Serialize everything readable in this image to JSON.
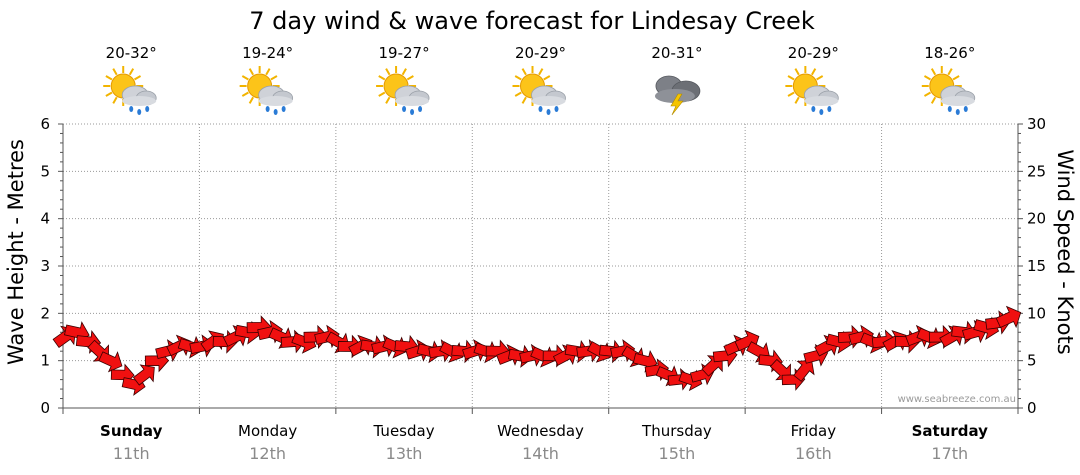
{
  "chart_data": {
    "type": "line",
    "title": "7 day wind & wave forecast for Lindesay Creek",
    "ylabel_left": "Wave Height - Metres",
    "ylabel_right": "Wind Speed - Knots",
    "ylim_left": [
      0,
      6
    ],
    "ylim_right": [
      0,
      30
    ],
    "yticks_left": [
      "0",
      "1",
      "2",
      "3",
      "4",
      "5",
      "6"
    ],
    "yticks_right": [
      "0",
      "5",
      "10",
      "15",
      "20",
      "25",
      "30"
    ],
    "days": [
      {
        "name": "Sunday",
        "date": "11th",
        "bold": true,
        "temp": "20-32°",
        "icon": "sun-cloud-rain-icon"
      },
      {
        "name": "Monday",
        "date": "12th",
        "bold": false,
        "temp": "19-24°",
        "icon": "sun-cloud-rain-icon"
      },
      {
        "name": "Tuesday",
        "date": "13th",
        "bold": false,
        "temp": "19-27°",
        "icon": "sun-cloud-rain-icon"
      },
      {
        "name": "Wednesday",
        "date": "14th",
        "bold": false,
        "temp": "20-29°",
        "icon": "sun-cloud-rain-icon"
      },
      {
        "name": "Thursday",
        "date": "15th",
        "bold": false,
        "temp": "20-31°",
        "icon": "storm-cloud-icon"
      },
      {
        "name": "Friday",
        "date": "16th",
        "bold": false,
        "temp": "20-29°",
        "icon": "sun-cloud-rain-icon"
      },
      {
        "name": "Saturday",
        "date": "17th",
        "bold": true,
        "temp": "18-26°",
        "icon": "sun-cloud-rain-icon"
      }
    ],
    "series": [
      {
        "name": "Wind Speed - Knots",
        "axis": "right",
        "hours_per_point": 2,
        "values": [
          7.5,
          8,
          7,
          6,
          5,
          3.5,
          2.5,
          3.5,
          5,
          6,
          6.5,
          6.5,
          6.5,
          7,
          7,
          7.5,
          8,
          8.5,
          8,
          7.5,
          7,
          7,
          7.5,
          7.5,
          7,
          6.5,
          6.5,
          6.5,
          6.5,
          6.5,
          6.5,
          6,
          6,
          6,
          6,
          6,
          6,
          6,
          6,
          5.5,
          5.5,
          5.5,
          5.5,
          5.5,
          5.5,
          6,
          6,
          6,
          6,
          6,
          5.5,
          5,
          4,
          3.5,
          3,
          3,
          3.5,
          4.5,
          5.5,
          6.5,
          7,
          6,
          5,
          4,
          3,
          4,
          5.5,
          6.5,
          7,
          7.5,
          7.5,
          7,
          7,
          7,
          7,
          7.5,
          7.5,
          7.5,
          7.5,
          8,
          8,
          8.5,
          9,
          9.5
        ]
      }
    ],
    "watermark": "www.seabreeze.com.au",
    "grid": true
  }
}
